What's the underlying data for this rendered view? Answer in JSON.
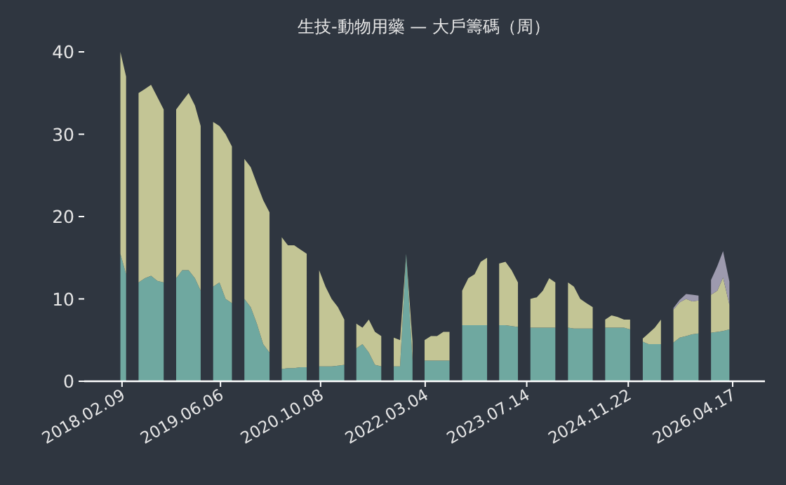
{
  "chart_data": {
    "type": "area",
    "stacked": true,
    "title": "生技-動物用藥 — 大戶籌碼（周）",
    "x": [
      "2018-02",
      "2018-03",
      "2018-04",
      "2018-05",
      "2018-06",
      "2018-07",
      "2018-08",
      "2018-09",
      "2018-10",
      "2018-11",
      "2018-12",
      "2019-01",
      "2019-02",
      "2019-03",
      "2019-04",
      "2019-05",
      "2019-06",
      "2019-07",
      "2019-08",
      "2019-09",
      "2019-10",
      "2019-11",
      "2019-12",
      "2020-01",
      "2020-02",
      "2020-03",
      "2020-04",
      "2020-05",
      "2020-06",
      "2020-07",
      "2020-08",
      "2020-09",
      "2020-10",
      "2020-11",
      "2020-12",
      "2021-01",
      "2021-02",
      "2021-03",
      "2021-04",
      "2021-05",
      "2021-06",
      "2021-07",
      "2021-08",
      "2021-09",
      "2021-10",
      "2021-11",
      "2021-12",
      "2022-01",
      "2022-02",
      "2022-03",
      "2022-04",
      "2022-05",
      "2022-06",
      "2022-07",
      "2022-08",
      "2022-09",
      "2022-10",
      "2022-11",
      "2022-12",
      "2023-01",
      "2023-02",
      "2023-03",
      "2023-04",
      "2023-05",
      "2023-06",
      "2023-07",
      "2023-08",
      "2023-09",
      "2023-10",
      "2023-11",
      "2023-12",
      "2024-01",
      "2024-02",
      "2024-03",
      "2024-04",
      "2024-05",
      "2024-06",
      "2024-07",
      "2024-08",
      "2024-09",
      "2024-10",
      "2024-11",
      "2024-12",
      "2025-01",
      "2025-02",
      "2025-03",
      "2025-04",
      "2025-05",
      "2025-06",
      "2025-07",
      "2025-08",
      "2025-09",
      "2025-10",
      "2025-11",
      "2025-12",
      "2026-01",
      "2026-02",
      "2026-03",
      "2026-04"
    ],
    "series": [
      {
        "color": "#6fa8a0",
        "values": [
          15.5,
          13,
          null,
          12,
          12.5,
          12.8,
          12.2,
          12,
          null,
          12.5,
          13.5,
          13.5,
          12.5,
          11,
          null,
          11.5,
          12,
          10,
          9.5,
          null,
          10,
          9,
          7,
          4.5,
          3.5,
          null,
          1.5,
          1.6,
          1.6,
          1.7,
          1.7,
          null,
          1.8,
          1.8,
          1.8,
          1.9,
          2,
          null,
          4,
          4.5,
          3.5,
          2,
          1.8,
          null,
          1.8,
          1.8,
          15.5,
          2.5,
          null,
          2.5,
          2.5,
          2.5,
          2.5,
          2.5,
          null,
          6.8,
          6.8,
          6.8,
          6.8,
          6.8,
          null,
          6.8,
          6.8,
          6.7,
          6.6,
          null,
          6.5,
          6.5,
          6.5,
          6.5,
          6.5,
          null,
          6.5,
          6.4,
          6.4,
          6.4,
          6.4,
          null,
          6.5,
          6.5,
          6.5,
          6.5,
          6.3,
          null,
          4.8,
          4.5,
          4.5,
          4.5,
          null,
          4.7,
          5.3,
          5.5,
          5.7,
          5.8,
          null,
          5.9,
          6,
          6.1,
          6.3
        ]
      },
      {
        "color": "#c3c595",
        "values": [
          24.5,
          24,
          null,
          23,
          23,
          23.2,
          22.3,
          21,
          null,
          20.5,
          20.5,
          21.5,
          21,
          20,
          null,
          20,
          19,
          20,
          19,
          null,
          17,
          17,
          17,
          17.5,
          17,
          null,
          16,
          14.9,
          14.9,
          14.3,
          13.8,
          null,
          11.7,
          9.7,
          8.2,
          7.1,
          5.5,
          null,
          3,
          2,
          4,
          4,
          3.7,
          null,
          3.5,
          3.2,
          0,
          2.3,
          null,
          2.5,
          3,
          3,
          3.5,
          3.5,
          null,
          4.2,
          5.7,
          6.2,
          7.7,
          8.2,
          null,
          7.5,
          7.7,
          6.8,
          5.4,
          null,
          3.5,
          3.7,
          4.5,
          6,
          5.5,
          null,
          5.5,
          5.1,
          3.6,
          3.1,
          2.6,
          null,
          1,
          1.5,
          1.3,
          1,
          1.2,
          null,
          0.4,
          1.3,
          2,
          3,
          null,
          4,
          4.3,
          4.5,
          4,
          4,
          null,
          4.6,
          5,
          6.5,
          3
        ]
      },
      {
        "color": "#9d9aae",
        "values": [
          null,
          null,
          null,
          null,
          null,
          null,
          null,
          null,
          null,
          null,
          null,
          null,
          null,
          null,
          null,
          null,
          null,
          null,
          null,
          null,
          null,
          null,
          null,
          null,
          null,
          null,
          null,
          null,
          null,
          null,
          null,
          null,
          null,
          null,
          null,
          null,
          null,
          null,
          null,
          null,
          null,
          null,
          null,
          null,
          null,
          null,
          null,
          null,
          null,
          null,
          null,
          null,
          null,
          null,
          null,
          null,
          null,
          null,
          null,
          null,
          null,
          null,
          null,
          null,
          null,
          null,
          null,
          null,
          null,
          null,
          null,
          null,
          null,
          null,
          null,
          null,
          null,
          null,
          null,
          null,
          null,
          null,
          null,
          null,
          null,
          null,
          null,
          null,
          null,
          0.2,
          0.3,
          0.6,
          0.8,
          0.6,
          null,
          1.8,
          3,
          3.2,
          2.8
        ]
      }
    ],
    "xlim": [
      "2017-08-08",
      "2026-09-22"
    ],
    "xticks": [
      {
        "value": "2018-02-09",
        "label": "2018.02.09"
      },
      {
        "value": "2019-06-06",
        "label": "2019.06.06"
      },
      {
        "value": "2020-10-08",
        "label": "2020.10.08"
      },
      {
        "value": "2022-03-04",
        "label": "2022.03.04"
      },
      {
        "value": "2023-07-14",
        "label": "2023.07.14"
      },
      {
        "value": "2024-11-22",
        "label": "2024.11.22"
      },
      {
        "value": "2026-04-17",
        "label": "2026.04.17"
      }
    ],
    "ylim": [
      0,
      40
    ],
    "yticks": [
      0,
      10,
      20,
      30,
      40
    ],
    "grid": false
  }
}
